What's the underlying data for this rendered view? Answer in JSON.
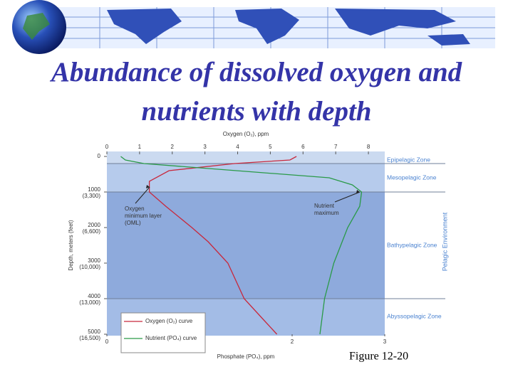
{
  "chart_data": {
    "type": "line",
    "title": "Abundance of dissolved oxygen and nutrients with depth",
    "x_label": "Oxygen (O₂), ppm",
    "x2_label": "Phosphate (PO₄), ppm",
    "y_label": "Depth, meters (feet)",
    "right_label": "Pelagic Environment",
    "caption": "Figure 12-20",
    "xlim": [
      0,
      8.5
    ],
    "xticks": [
      0,
      1,
      2,
      3,
      4,
      5,
      6,
      7,
      8
    ],
    "x2lim": [
      0,
      3
    ],
    "x2ticks": [
      0,
      1,
      2,
      3
    ],
    "ylim": [
      0,
      5000
    ],
    "y_inverted": true,
    "yticks": [
      0,
      1000,
      2000,
      3000,
      4000,
      5000
    ],
    "ytick_feet": [
      "(3,300)",
      "(6,600)",
      "(10,000)",
      "(13,000)",
      "(16,500)"
    ],
    "zones": [
      {
        "name": "Epipelagic Zone",
        "top": 0,
        "bottom": 200,
        "color": "#cbdaf0"
      },
      {
        "name": "Mesopelagic Zone",
        "top": 200,
        "bottom": 1000,
        "color": "#b6cbec"
      },
      {
        "name": "Bathypelagic Zone",
        "top": 1000,
        "bottom": 4000,
        "color": "#8eaadc"
      },
      {
        "name": "Abyssopelagic Zone",
        "top": 4000,
        "bottom": 5000,
        "color": "#a3bce6"
      }
    ],
    "series": [
      {
        "name": "Oxygen (O₂) curve",
        "color": "#c8283c",
        "axis": "x",
        "depth": [
          0,
          100,
          200,
          400,
          700,
          1000,
          1400,
          2000,
          2400,
          3000,
          4000,
          4600,
          5000
        ],
        "values": [
          5.8,
          5.6,
          3.9,
          1.9,
          1.3,
          1.3,
          1.8,
          2.6,
          3.1,
          3.7,
          4.2,
          4.8,
          5.2
        ]
      },
      {
        "name": "Nutrient (PO₄) curve",
        "color": "#2a9a48",
        "axis": "x2",
        "depth": [
          0,
          100,
          200,
          400,
          600,
          800,
          1000,
          1400,
          2000,
          3000,
          4000,
          5000
        ],
        "values": [
          0.15,
          0.2,
          0.4,
          1.4,
          2.4,
          2.65,
          2.75,
          2.73,
          2.6,
          2.45,
          2.35,
          2.3
        ]
      }
    ],
    "annotations": [
      {
        "lines": [
          "Oxygen",
          "minimum layer",
          "(OML)"
        ]
      },
      {
        "lines": [
          "Nutrient",
          "maximum"
        ]
      }
    ]
  }
}
